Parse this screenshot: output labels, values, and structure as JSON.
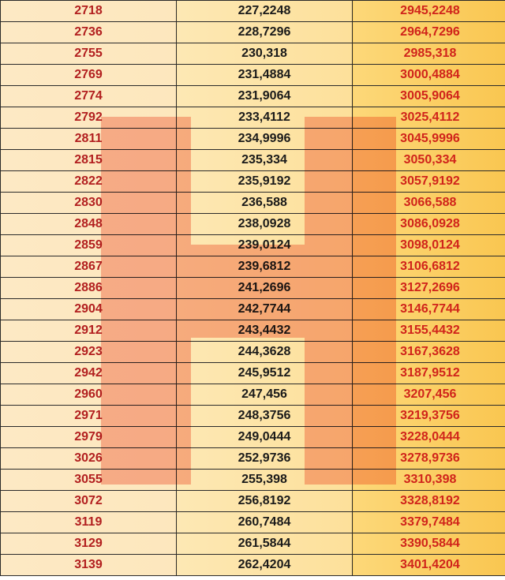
{
  "rows": [
    {
      "n": "2718",
      "tax": "227,2248",
      "total": "2945,2248"
    },
    {
      "n": "2736",
      "tax": "228,7296",
      "total": "2964,7296"
    },
    {
      "n": "2755",
      "tax": "230,318",
      "total": "2985,318"
    },
    {
      "n": "2769",
      "tax": "231,4884",
      "total": "3000,4884"
    },
    {
      "n": "2774",
      "tax": "231,9064",
      "total": "3005,9064"
    },
    {
      "n": "2792",
      "tax": "233,4112",
      "total": "3025,4112"
    },
    {
      "n": "2811",
      "tax": "234,9996",
      "total": "3045,9996"
    },
    {
      "n": "2815",
      "tax": "235,334",
      "total": "3050,334"
    },
    {
      "n": "2822",
      "tax": "235,9192",
      "total": "3057,9192"
    },
    {
      "n": "2830",
      "tax": "236,588",
      "total": "3066,588"
    },
    {
      "n": "2848",
      "tax": "238,0928",
      "total": "3086,0928"
    },
    {
      "n": "2859",
      "tax": "239,0124",
      "total": "3098,0124"
    },
    {
      "n": "2867",
      "tax": "239,6812",
      "total": "3106,6812"
    },
    {
      "n": "2886",
      "tax": "241,2696",
      "total": "3127,2696"
    },
    {
      "n": "2904",
      "tax": "242,7744",
      "total": "3146,7744"
    },
    {
      "n": "2912",
      "tax": "243,4432",
      "total": "3155,4432"
    },
    {
      "n": "2923",
      "tax": "244,3628",
      "total": "3167,3628"
    },
    {
      "n": "2942",
      "tax": "245,9512",
      "total": "3187,9512"
    },
    {
      "n": "2960",
      "tax": "247,456",
      "total": "3207,456"
    },
    {
      "n": "2971",
      "tax": "248,3756",
      "total": "3219,3756"
    },
    {
      "n": "2979",
      "tax": "249,0444",
      "total": "3228,0444"
    },
    {
      "n": "3026",
      "tax": "252,9736",
      "total": "3278,9736"
    },
    {
      "n": "3055",
      "tax": "255,398",
      "total": "3310,398"
    },
    {
      "n": "3072",
      "tax": "256,8192",
      "total": "3328,8192"
    },
    {
      "n": "3119",
      "tax": "260,7484",
      "total": "3379,7484"
    },
    {
      "n": "3129",
      "tax": "261,5844",
      "total": "3390,5844"
    },
    {
      "n": "3139",
      "tax": "262,4204",
      "total": "3401,4204"
    }
  ],
  "colors": {
    "col1_text": "#b21f1f",
    "col2_text": "#1a1a1a",
    "col3_text": "#d0241b",
    "watermark": "#ee5f46"
  },
  "watermark_icon": "letter-h-watermark"
}
